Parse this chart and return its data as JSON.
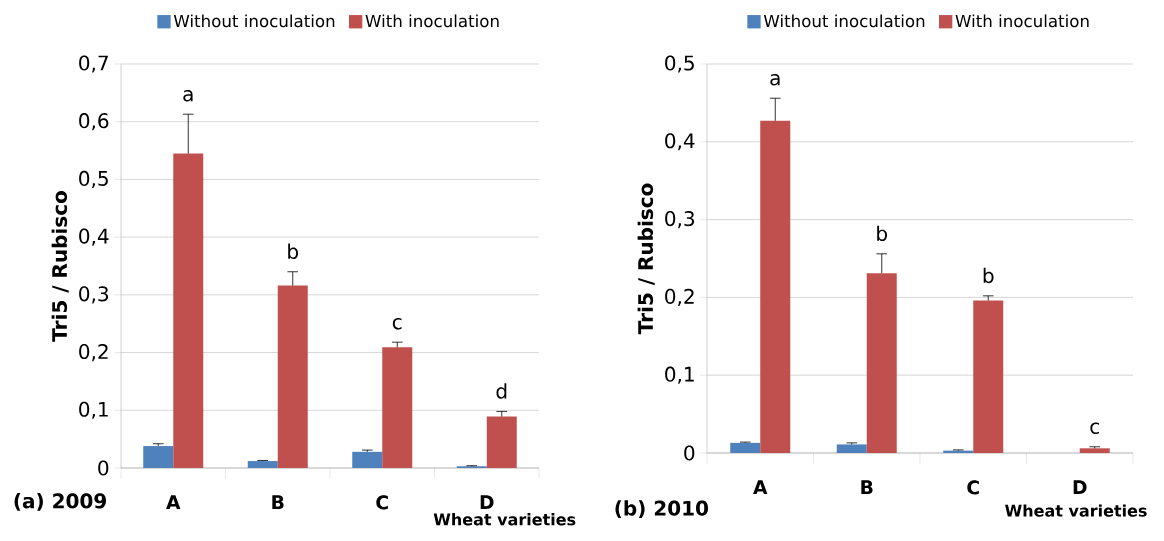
{
  "chart_data": [
    {
      "type": "bar",
      "title": "(a) 2009",
      "xlabel": "Wheat varieties",
      "ylabel": "Tri5 / Rubisco",
      "categories": [
        "A",
        "B",
        "C",
        "D"
      ],
      "series": [
        {
          "name": "Without inoculation",
          "color": "#4f81bd",
          "values": [
            0.038,
            0.012,
            0.028,
            0.003
          ],
          "errors": [
            0.004,
            0.001,
            0.003,
            0.001
          ]
        },
        {
          "name": "With inoculation",
          "color": "#c0504d",
          "values": [
            0.545,
            0.316,
            0.209,
            0.089
          ],
          "errors": [
            0.068,
            0.024,
            0.009,
            0.009
          ]
        }
      ],
      "ylim": [
        0,
        0.7
      ],
      "yticks": [
        0,
        {
          "value": 0.1,
          "label": "0,1"
        },
        {
          "value": 0.2,
          "label": "0,2"
        },
        {
          "value": 0.3,
          "label": "0,3"
        },
        {
          "value": 0.4,
          "label": "0,4"
        },
        {
          "value": 0.5,
          "label": "0,5"
        },
        {
          "value": 0.6,
          "label": "0,6"
        },
        {
          "value": 0.7,
          "label": "0,7"
        }
      ],
      "grid": "y",
      "legend": "top",
      "annotations": [
        "a",
        "b",
        "c",
        "d"
      ]
    },
    {
      "type": "bar",
      "title": "(b) 2010",
      "xlabel": "Wheat varieties",
      "ylabel": "Tri5 / Rubisco",
      "categories": [
        "A",
        "B",
        "C",
        "D"
      ],
      "series": [
        {
          "name": "Without inoculation",
          "color": "#4f81bd",
          "values": [
            0.013,
            0.011,
            0.003,
            null
          ],
          "errors": [
            0.001,
            0.002,
            0.001,
            null
          ]
        },
        {
          "name": "With inoculation",
          "color": "#c0504d",
          "values": [
            0.427,
            0.231,
            0.196,
            0.006
          ],
          "errors": [
            0.029,
            0.025,
            0.006,
            0.002
          ]
        }
      ],
      "ylim": [
        0,
        0.5
      ],
      "yticks": [
        0,
        {
          "value": 0.1,
          "label": "0,1"
        },
        {
          "value": 0.2,
          "label": "0,2"
        },
        {
          "value": 0.3,
          "label": "0,3"
        },
        {
          "value": 0.4,
          "label": "0,4"
        },
        {
          "value": 0.5,
          "label": "0,5"
        }
      ],
      "grid": "y",
      "legend": "top",
      "annotations": [
        "a",
        "b",
        "b",
        "c"
      ]
    }
  ]
}
